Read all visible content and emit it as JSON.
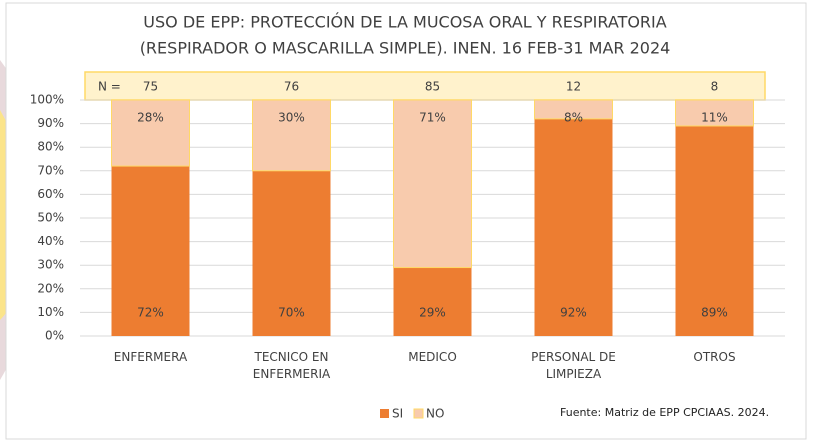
{
  "chart_data": {
    "type": "stacked_bar",
    "title": [
      "USO DE EPP: PROTECCIÓN DE LA MUCOSA ORAL Y RESPIRATORIA",
      "(RESPIRADOR O MASCARILLA SIMPLE). INEN. 16 FEB-31 MAR 2024"
    ],
    "categories": [
      "ENFERMERA",
      "TECNICO EN ENFERMERIA",
      "MEDICO",
      "PERSONAL DE LIMPIEZA",
      "OTROS"
    ],
    "n_label": "N =",
    "n_values": [
      75,
      76,
      85,
      12,
      8
    ],
    "series": [
      {
        "name": "SI",
        "color": "#ed7d31",
        "values": [
          72,
          70,
          29,
          92,
          89
        ],
        "value_labels": [
          "72%",
          "70%",
          "29%",
          "92%",
          "89%"
        ]
      },
      {
        "name": "NO",
        "color": "#f8cbad",
        "values": [
          28,
          30,
          71,
          8,
          11
        ],
        "value_labels": [
          "28%",
          "30%",
          "71%",
          "8%",
          "11%"
        ]
      }
    ],
    "ylim": [
      0,
      100
    ],
    "yticks": [
      {
        "value": 0,
        "label": "0%"
      },
      {
        "value": 10,
        "label": "10%"
      },
      {
        "value": 20,
        "label": "20%"
      },
      {
        "value": 30,
        "label": "30%"
      },
      {
        "value": 40,
        "label": "40%"
      },
      {
        "value": 50,
        "label": "50%"
      },
      {
        "value": 60,
        "label": "60%"
      },
      {
        "value": 70,
        "label": "70%"
      },
      {
        "value": 80,
        "label": "80%"
      },
      {
        "value": 90,
        "label": "90%"
      },
      {
        "value": 100,
        "label": "100%"
      }
    ],
    "grid": true,
    "legend": "bottom",
    "source": "Fuente: Matriz de EPP CPCIAAS. 2024."
  }
}
